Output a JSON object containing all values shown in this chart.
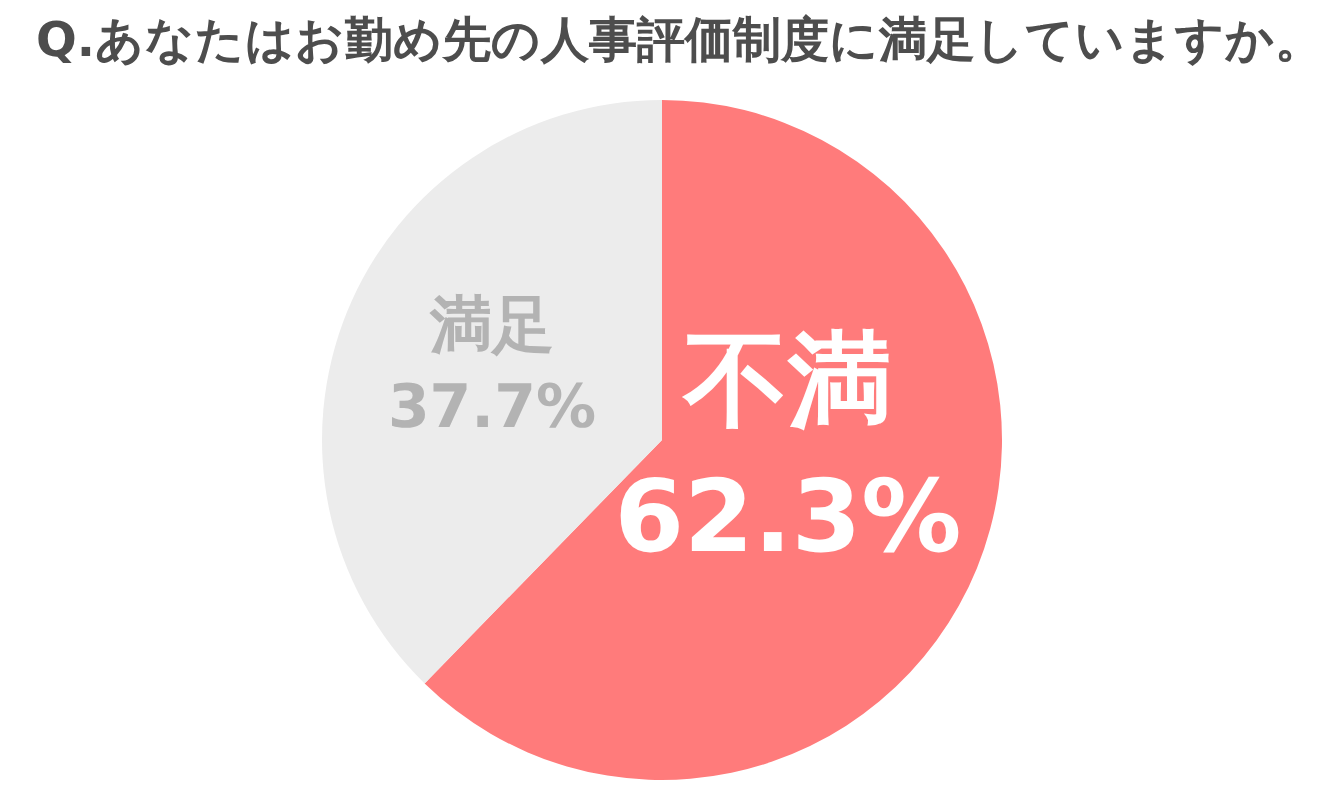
{
  "chart_data": {
    "type": "pie",
    "title": "Q.あなたはお勤め先の人事評価制度に満足していますか。",
    "categories": [
      "不満",
      "満足"
    ],
    "values": [
      62.3,
      37.7
    ],
    "colors": [
      "#ff7b7b",
      "#ececec"
    ],
    "value_labels": [
      "62.3%",
      "37.7%"
    ]
  }
}
